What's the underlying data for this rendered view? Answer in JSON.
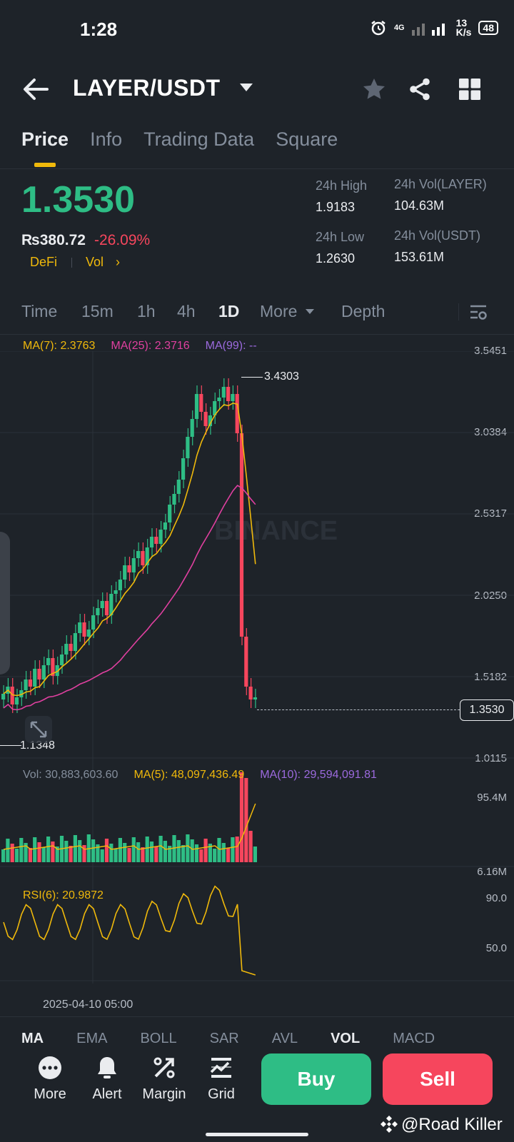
{
  "status": {
    "time": "1:28",
    "network": "4G",
    "speed_value": "13",
    "speed_unit": "K/s",
    "battery": "48"
  },
  "header": {
    "pair": "LAYER/USDT"
  },
  "tabs": [
    {
      "label": "Price",
      "active": true
    },
    {
      "label": "Info"
    },
    {
      "label": "Trading Data"
    },
    {
      "label": "Square"
    }
  ],
  "ticker": {
    "last_price": "1.3530",
    "inr_price": "₨380.72",
    "change": "-26.09%",
    "tag": "DeFi",
    "tag2": "Vol",
    "tag2_arrow": "›",
    "stats": {
      "high_label": "24h High",
      "high_value": "1.9183",
      "vol_layer_label": "24h Vol(LAYER)",
      "vol_layer_value": "104.63M",
      "low_label": "24h Low",
      "low_value": "1.2630",
      "vol_usdt_label": "24h Vol(USDT)",
      "vol_usdt_value": "153.61M"
    }
  },
  "intervals": {
    "items": [
      "Time",
      "15m",
      "1h",
      "4h",
      "1D",
      "More",
      "Depth"
    ],
    "active": "1D"
  },
  "chart": {
    "ma_labels": {
      "ma7": "MA(7): 2.3763",
      "ma25": "MA(25): 2.3716",
      "ma99": "MA(99): --"
    },
    "price_axis": [
      "3.5451",
      "3.0384",
      "2.5317",
      "2.0250",
      "1.5182",
      "1.0115"
    ],
    "current_price_tag": "1.3530",
    "high_marker": "3.4303",
    "low_marker": "1.1348",
    "watermark": "BINANCE",
    "volume": {
      "vol_label": "Vol: 30,883,603.60",
      "ma5_label": "MA(5): 48,097,436.49",
      "ma10_label": "MA(10): 29,594,091.81",
      "axis": [
        "95.4M",
        "6.16M"
      ]
    },
    "rsi": {
      "label": "RSI(6): 20.9872",
      "axis": [
        "90.0",
        "50.0"
      ]
    },
    "date_label": "2025-04-10 05:00",
    "colors": {
      "up": "#2ebd85",
      "down": "#f6465d",
      "ma7": "#f0b90b",
      "ma25": "#e040a0",
      "ma99": "#9c6ade"
    }
  },
  "indicators": [
    "MA",
    "EMA",
    "BOLL",
    "SAR",
    "AVL",
    "VOL",
    "MACD"
  ],
  "bottom_bar": {
    "more": "More",
    "alert": "Alert",
    "margin": "Margin",
    "grid": "Grid",
    "buy": "Buy",
    "sell": "Sell"
  },
  "watermark_user": "@Road Killer"
}
